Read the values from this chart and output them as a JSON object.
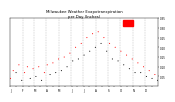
{
  "title": "Milwaukee Weather Evapotranspiration\nper Day (Inches)",
  "bg_color": "#ffffff",
  "plot_bg": "#ffffff",
  "grid_color": "#999999",
  "dot_color_red": "#ff0000",
  "dot_color_black": "#000000",
  "legend_color": "#ff0000",
  "ylim": [
    0.0,
    0.35
  ],
  "yticks": [
    0.05,
    0.1,
    0.15,
    0.2,
    0.25,
    0.3,
    0.35
  ],
  "ytick_labels": [
    "0.05",
    "0.10",
    "0.15",
    "0.20",
    "0.25",
    "0.30",
    "0.35"
  ],
  "month_boundaries": [
    31,
    59,
    90,
    120,
    151,
    181,
    212,
    243,
    273,
    304,
    334
  ],
  "xtick_positions": [
    1,
    15,
    32,
    46,
    61,
    75,
    91,
    106,
    121,
    136,
    152,
    166,
    182,
    196,
    213,
    227,
    244,
    258,
    274,
    289,
    305,
    320,
    335,
    350
  ],
  "xtick_labels": [
    "J",
    "",
    "F",
    "",
    "M",
    "",
    "A",
    "",
    "M",
    "",
    "J",
    "",
    "J",
    "",
    "A",
    "",
    "S",
    "",
    "O",
    "",
    "N",
    "",
    "D",
    ""
  ],
  "x_days": [
    1,
    8,
    15,
    22,
    29,
    36,
    43,
    50,
    57,
    64,
    71,
    78,
    85,
    92,
    99,
    106,
    113,
    120,
    127,
    134,
    141,
    148,
    155,
    162,
    169,
    176,
    183,
    190,
    197,
    204,
    211,
    218,
    225,
    232,
    239,
    246,
    253,
    260,
    267,
    274,
    281,
    288,
    295,
    302,
    309,
    316,
    323,
    330,
    337,
    344,
    351,
    358,
    365
  ],
  "values": [
    0.04,
    0.08,
    0.07,
    0.11,
    0.03,
    0.07,
    0.1,
    0.04,
    0.09,
    0.05,
    0.1,
    0.03,
    0.07,
    0.11,
    0.06,
    0.12,
    0.07,
    0.14,
    0.08,
    0.15,
    0.1,
    0.17,
    0.13,
    0.2,
    0.14,
    0.22,
    0.16,
    0.25,
    0.18,
    0.27,
    0.2,
    0.28,
    0.22,
    0.25,
    0.18,
    0.22,
    0.14,
    0.2,
    0.13,
    0.18,
    0.11,
    0.16,
    0.09,
    0.14,
    0.07,
    0.12,
    0.07,
    0.1,
    0.05,
    0.08,
    0.04,
    0.06,
    0.03
  ],
  "colors": [
    "r",
    "r",
    "k",
    "r",
    "k",
    "r",
    "r",
    "k",
    "r",
    "k",
    "r",
    "k",
    "r",
    "r",
    "k",
    "r",
    "k",
    "r",
    "k",
    "r",
    "k",
    "r",
    "k",
    "r",
    "k",
    "r",
    "k",
    "r",
    "k",
    "r",
    "k",
    "r",
    "k",
    "r",
    "k",
    "r",
    "k",
    "r",
    "k",
    "r",
    "k",
    "r",
    "k",
    "r",
    "k",
    "r",
    "k",
    "r",
    "k",
    "r",
    "k",
    "r",
    "k"
  ]
}
